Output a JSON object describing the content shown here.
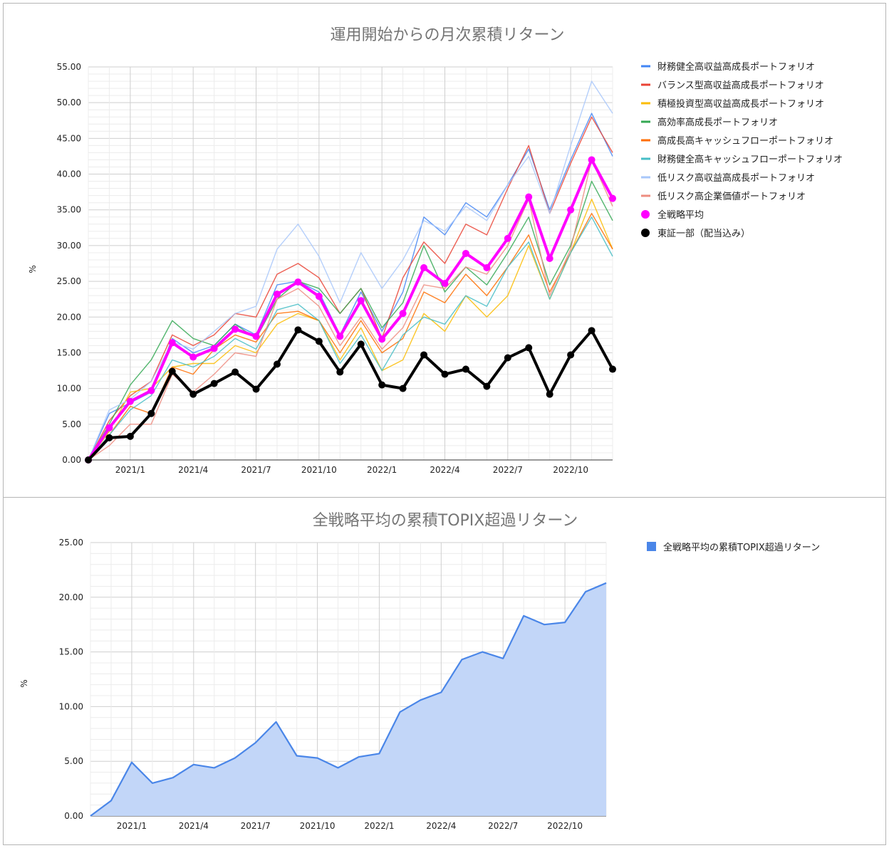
{
  "chart_data": [
    {
      "type": "line",
      "title": "運用開始からの月次累積リターン",
      "ylabel": "%",
      "ylim": [
        0,
        55
      ],
      "yticks": [
        "0.00",
        "5.00",
        "10.00",
        "15.00",
        "20.00",
        "25.00",
        "30.00",
        "35.00",
        "40.00",
        "45.00",
        "50.00",
        "55.00"
      ],
      "xtick_labels": [
        "2021/1",
        "2021/4",
        "2021/7",
        "2021/10",
        "2022/1",
        "2022/4",
        "2022/7",
        "2022/10"
      ],
      "x": [
        "2020/11",
        "2020/12",
        "2021/1",
        "2021/2",
        "2021/3",
        "2021/4",
        "2021/5",
        "2021/6",
        "2021/7",
        "2021/8",
        "2021/9",
        "2021/10",
        "2021/11",
        "2021/12",
        "2022/1",
        "2022/2",
        "2022/3",
        "2022/4",
        "2022/5",
        "2022/6",
        "2022/7",
        "2022/8",
        "2022/9",
        "2022/10",
        "2022/11",
        "2022/12"
      ],
      "legend_position": "right",
      "grid": true,
      "series": [
        {
          "name": "財務健全高収益高成長ポートフォリオ",
          "color": "#4285f4",
          "values": [
            0,
            6.5,
            8,
            9.5,
            17,
            15,
            16,
            19,
            17.5,
            24.5,
            25,
            23.5,
            17.5,
            23.5,
            18,
            23.5,
            34,
            31.5,
            36,
            34,
            38.5,
            43.5,
            35,
            42,
            48.5,
            42.5
          ]
        },
        {
          "name": "バランス型高収益高成長ポートフォリオ",
          "color": "#ea4335",
          "values": [
            0,
            5.5,
            9,
            11,
            17.5,
            16,
            17.5,
            20.5,
            20,
            26,
            27.5,
            25.5,
            20.5,
            24,
            17,
            25.5,
            30.5,
            27.5,
            33,
            31.5,
            38,
            44,
            34.5,
            41.5,
            48,
            43
          ]
        },
        {
          "name": "積極投資型高収益高成長ポートフォリオ",
          "color": "#fbbc04",
          "values": [
            0,
            4,
            9.5,
            10,
            13,
            13.5,
            13.5,
            16,
            15,
            19,
            20.5,
            19.5,
            14,
            18.5,
            12.5,
            14,
            20.5,
            18,
            23,
            20,
            23,
            30,
            22.5,
            29,
            36.5,
            29.5
          ]
        },
        {
          "name": "高効率高成長ポートフォリオ",
          "color": "#34a853",
          "values": [
            0,
            5,
            10.5,
            14,
            19.5,
            17,
            16,
            19,
            17,
            22.5,
            25,
            24,
            20.5,
            24,
            18.5,
            22,
            30,
            23.5,
            27,
            24.5,
            29,
            34,
            24.5,
            30,
            39,
            33.5
          ]
        },
        {
          "name": "高成長高キャッシュフローポートフォリオ",
          "color": "#ff6d01",
          "values": [
            0,
            3.5,
            7.5,
            6.5,
            13,
            12,
            15.5,
            17.5,
            16.5,
            20.5,
            20.8,
            19.5,
            15,
            19.5,
            15,
            17,
            23.5,
            22,
            26,
            23,
            27,
            31.5,
            23.5,
            29,
            34.5,
            29.5
          ]
        },
        {
          "name": "財務健全高キャッシュフローポートフォリオ",
          "color": "#46bdc6",
          "values": [
            0,
            3.5,
            7,
            9,
            14,
            13,
            14.5,
            17,
            15.5,
            21,
            21.8,
            19.5,
            13.5,
            17.5,
            12.5,
            17.5,
            20,
            19,
            23,
            21.5,
            27,
            30.5,
            22.5,
            29,
            34,
            28.5
          ]
        },
        {
          "name": "低リスク高収益高成長ポートフォリオ",
          "color": "#a8c7fa",
          "values": [
            0,
            7,
            8.5,
            11,
            16.5,
            15.5,
            18,
            20.5,
            21.5,
            29.5,
            33,
            28.5,
            22,
            29,
            24,
            28,
            33.5,
            32,
            35.5,
            33.5,
            38.5,
            42.5,
            34.5,
            44,
            53,
            48.5
          ]
        },
        {
          "name": "低リスク高企業価値ポートフォリオ",
          "color": "#ee8c80",
          "values": [
            0,
            2,
            5,
            5,
            12,
            9.5,
            12,
            15,
            14.5,
            22.5,
            24,
            21.5,
            16,
            20,
            15.5,
            18.5,
            24.5,
            24,
            27,
            26,
            30,
            36.5,
            23,
            29.5,
            42,
            35.5
          ]
        },
        {
          "name": "全戦略平均",
          "color": "#ff00ff",
          "values": [
            0,
            4.5,
            8.2,
            9.7,
            16.4,
            14.4,
            15.6,
            18.3,
            17.3,
            23.2,
            24.9,
            22.9,
            17.3,
            22.3,
            16.9,
            20.5,
            26.9,
            24.7,
            28.9,
            26.9,
            31,
            36.8,
            28.2,
            35,
            42,
            36.6
          ]
        },
        {
          "name": "東証一部（配当込み）",
          "color": "#000000",
          "values": [
            0,
            3.1,
            3.3,
            6.5,
            12.4,
            9.2,
            10.7,
            12.3,
            9.9,
            13.4,
            18.2,
            16.6,
            12.3,
            16.2,
            10.5,
            10,
            14.7,
            12,
            12.7,
            10.3,
            14.3,
            15.7,
            9.2,
            14.7,
            18.1,
            12.7
          ]
        }
      ]
    },
    {
      "type": "area",
      "title": "全戦略平均の累積TOPIX超過リターン",
      "ylabel": "%",
      "ylim": [
        0,
        25
      ],
      "yticks": [
        "0.00",
        "5.00",
        "10.00",
        "15.00",
        "20.00",
        "25.00"
      ],
      "xtick_labels": [
        "2021/1",
        "2021/4",
        "2021/7",
        "2021/10",
        "2022/1",
        "2022/4",
        "2022/7",
        "2022/10"
      ],
      "x": [
        "2020/11",
        "2020/12",
        "2021/1",
        "2021/2",
        "2021/3",
        "2021/4",
        "2021/5",
        "2021/6",
        "2021/7",
        "2021/8",
        "2021/9",
        "2021/10",
        "2021/11",
        "2021/12",
        "2022/1",
        "2022/2",
        "2022/3",
        "2022/4",
        "2022/5",
        "2022/6",
        "2022/7",
        "2022/8",
        "2022/9",
        "2022/10",
        "2022/11",
        "2022/12"
      ],
      "legend_position": "right",
      "grid": true,
      "series": [
        {
          "name": "全戦略平均の累積TOPIX超過リターン",
          "color": "#4a86e8",
          "values": [
            0,
            1.4,
            4.9,
            3,
            3.5,
            4.7,
            4.4,
            5.3,
            6.7,
            8.6,
            5.5,
            5.3,
            4.4,
            5.4,
            5.7,
            9.5,
            10.6,
            11.3,
            14.3,
            15,
            14.4,
            18.3,
            17.5,
            17.7,
            20.5,
            21.3
          ]
        }
      ]
    }
  ]
}
